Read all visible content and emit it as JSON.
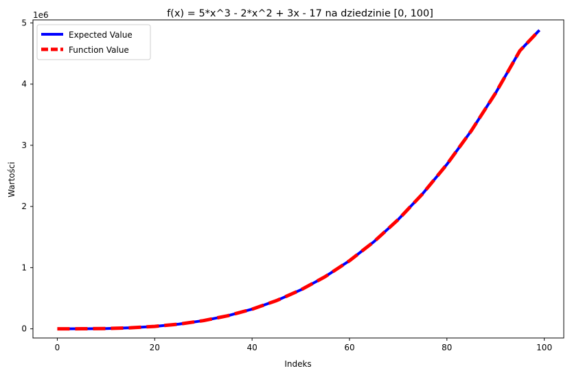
{
  "chart_data": {
    "type": "line",
    "title": "f(x) = 5*x^3 - 2*x^2 + 3x - 17 na dziedzinie [0, 100]",
    "xlabel": "Indeks",
    "ylabel": "Wartości",
    "offset_text": "1e6",
    "xlim": [
      -5,
      104
    ],
    "ylim": [
      -150000,
      5050000
    ],
    "x_ticks": [
      0,
      20,
      40,
      60,
      80,
      100
    ],
    "y_ticks": [
      0,
      1000000,
      2000000,
      3000000,
      4000000,
      5000000
    ],
    "x_tick_labels": [
      "0",
      "20",
      "40",
      "60",
      "80",
      "100"
    ],
    "y_tick_labels": [
      "0",
      "1",
      "2",
      "3",
      "4",
      "5"
    ],
    "legend_position": "upper left",
    "grid": false,
    "x": [
      0,
      5,
      10,
      15,
      20,
      25,
      30,
      35,
      40,
      45,
      50,
      55,
      60,
      65,
      70,
      75,
      80,
      85,
      90,
      95,
      99
    ],
    "series": [
      {
        "name": "Expected Value",
        "color": "#0000ff",
        "style": "solid",
        "values": [
          -17,
          588,
          4813,
          16408,
          39243,
          76808,
          133573,
          213598,
          321183,
          460588,
          636133,
          852098,
          1112763,
          1422408,
          1785313,
          2205758,
          2687923,
          3235888,
          3854033,
          4546538,
          4881464
        ]
      },
      {
        "name": "Function Value",
        "color": "#ff0000",
        "style": "dashed",
        "values": [
          -17,
          588,
          4813,
          16408,
          39243,
          76808,
          133573,
          213598,
          321183,
          460588,
          636133,
          852098,
          1112763,
          1422408,
          1785313,
          2205758,
          2687923,
          3235888,
          3854033,
          4546538,
          4881464
        ]
      }
    ]
  }
}
